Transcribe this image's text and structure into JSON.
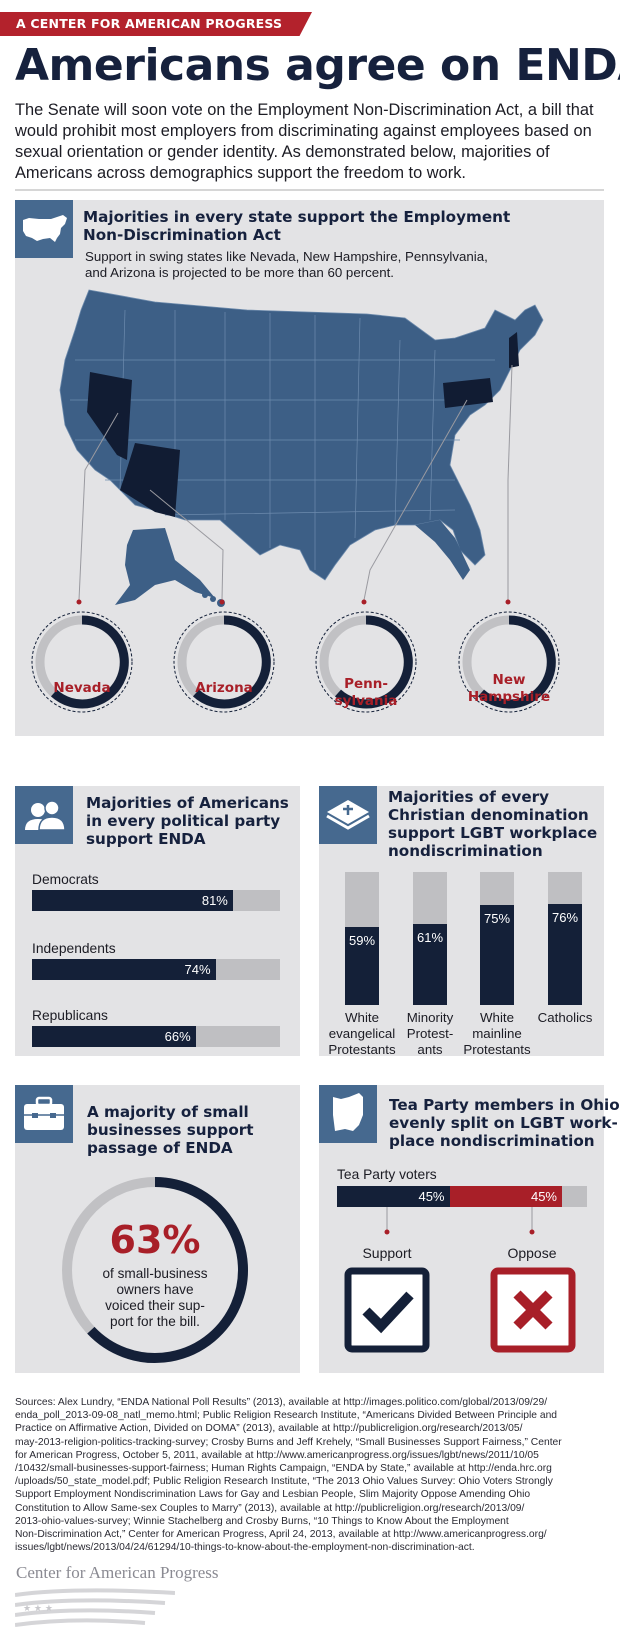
{
  "banner": "A CENTER FOR AMERICAN PROGRESS GRAPHIC",
  "title": "Americans agree on ENDA",
  "intro": "The Senate will soon vote on the Employment Non-Discrimination Act, a bill that would prohibit most employers from discriminating against employees based on sexual orientation or gender identity. As demonstrated below, majorities of Americans across demographics support the freedom to work.",
  "states_panel": {
    "title_line1": "Majorities in every state support the Employment",
    "title_line2": "Non-Discrimination Act",
    "subtitle_line1": "Support in swing states like Nevada, New Hampshire, Pennsylvania,",
    "subtitle_line2": "and Arizona is projected to be more than 60 percent.",
    "icon": "usa-map-icon",
    "swing_states": [
      {
        "line1": "Nevada",
        "line2": ""
      },
      {
        "line1": "Arizona",
        "line2": ""
      },
      {
        "line1": "Penn-",
        "line2": "sylvania"
      },
      {
        "line1": "New",
        "line2": "Hampshire"
      }
    ]
  },
  "party_panel": {
    "icon": "people-icon",
    "title_line1": "Majorities of Americans",
    "title_line2": "in every political party",
    "title_line3": "support ENDA",
    "bars": [
      {
        "label": "Democrats",
        "value": 81,
        "text": "81%"
      },
      {
        "label": "Independents",
        "value": 74,
        "text": "74%"
      },
      {
        "label": "Republicans",
        "value": 66,
        "text": "66%"
      }
    ]
  },
  "christian_panel": {
    "icon": "bible-icon",
    "title_line1": "Majorities of every",
    "title_line2": "Christian denomination",
    "title_line3": "support LGBT workplace",
    "title_line4": "nondiscrimination",
    "columns": [
      {
        "value": 59,
        "text": "59%",
        "line1": "White",
        "line2": "evangelical",
        "line3": "Protestants"
      },
      {
        "value": 61,
        "text": "61%",
        "line1": "Minority",
        "line2": "Protest-",
        "line3": "ants"
      },
      {
        "value": 75,
        "text": "75%",
        "line1": "White",
        "line2": "mainline",
        "line3": "Protestants"
      },
      {
        "value": 76,
        "text": "76%",
        "line1": "Catholics",
        "line2": "",
        "line3": ""
      }
    ]
  },
  "business_panel": {
    "icon": "briefcase-icon",
    "title_line1": "A majority of small",
    "title_line2": "businesses support",
    "title_line3": "passage of ENDA",
    "value": 63,
    "big": "63%",
    "text_line1": "of small-business",
    "text_line2": "owners have",
    "text_line3": "voiced their sup-",
    "text_line4": "port for the bill."
  },
  "ohio_panel": {
    "icon": "ohio-outline-icon",
    "title_line1": "Tea Party members in Ohio",
    "title_line2": "evenly split on LGBT work-",
    "title_line3": "place nondiscrimination",
    "bar_label": "Tea Party voters",
    "support_value": 45,
    "oppose_value": 45,
    "support_text": "45%",
    "oppose_text": "45%",
    "support_label": "Support",
    "oppose_label": "Oppose"
  },
  "sources": [
    "Sources: Alex Lundry, “ENDA National Poll Results” (2013), available at http://images.politico.com/global/2013/09/29/",
    "enda_poll_2013-09-08_natl_memo.html; Public Religion Research Institute, “Americans Divided Between Principle and",
    "Practice on Affirmative Action, Divided on DOMA” (2013), available at http://publicreligion.org/research/2013/05/",
    "may-2013-religion-politics-tracking-survey; Crosby Burns and Jeff Krehely, “Small Businesses Support Fairness,” Center",
    "for American Progress, October 5, 2011, available at http://www.americanprogress.org/issues/lgbt/news/2011/10/05",
    "/10432/small-businesses-support-fairness; Human Rights Campaign, “ENDA by State,” available at http://enda.hrc.org",
    "/uploads/50_state_model.pdf; Public Religion Research Institute, “The 2013 Ohio Values Survey: Ohio Voters Strongly",
    "Support Employment Nondiscrimination Laws for Gay and Lesbian People, Slim Majority Oppose Amending Ohio",
    "Constitution to Allow Same-sex Couples to Marry” (2013), available at http://publicreligion.org/research/2013/09/",
    "2013-ohio-values-survey; Winnie Stachelberg and Crosby Burns, “10 Things to Know About the Employment",
    "Non-Discrimination Act,” Center for American Progress, April 24, 2013, available at http://www.americanprogress.org/",
    "issues/lgbt/news/2013/04/24/61294/10-things-to-know-about-the-employment-non-discrimination-act."
  ],
  "footer_logo": "Center for American Progress",
  "colors": {
    "navy": "#142038",
    "steel": "#46698f",
    "red": "#a81f28",
    "panel": "#e3e3e5",
    "track": "#bfbfc2"
  }
}
